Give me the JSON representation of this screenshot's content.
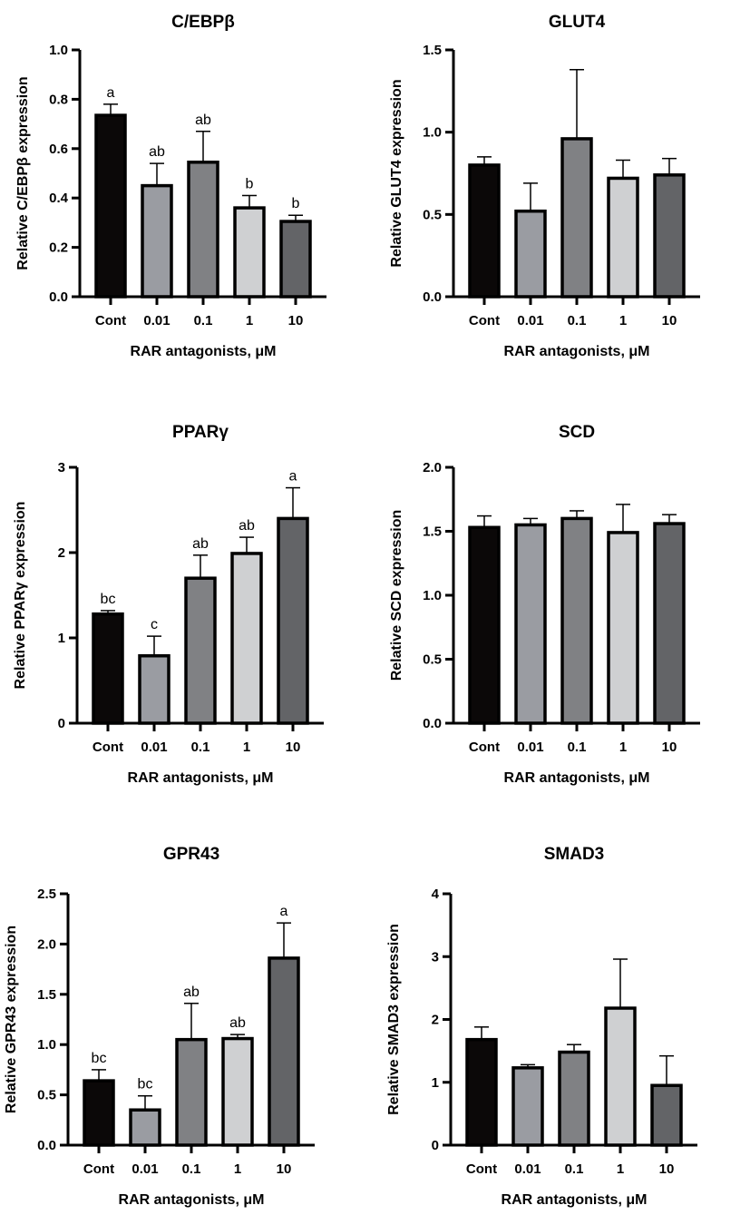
{
  "chart_data": [
    {
      "type": "bar",
      "title": "C/EBPβ",
      "ylabel": "Relative C/EBPβ expression",
      "xlabel": "RAR antagonists, μM",
      "categories": [
        "Cont",
        "0.01",
        "0.1",
        "1",
        "10"
      ],
      "values": [
        0.735,
        0.45,
        0.545,
        0.36,
        0.305
      ],
      "errors": [
        0.045,
        0.09,
        0.125,
        0.05,
        0.025
      ],
      "letters": [
        "a",
        "ab",
        "ab",
        "b",
        "b"
      ],
      "ylim": [
        0,
        1.0
      ],
      "yticks": [
        "0.0",
        "0.2",
        "0.4",
        "0.6",
        "0.8",
        "1.0"
      ]
    },
    {
      "type": "bar",
      "title": "GLUT4",
      "ylabel": "Relative GLUT4 expression",
      "xlabel": "RAR antagonists, μM",
      "categories": [
        "Cont",
        "0.01",
        "0.1",
        "1",
        "10"
      ],
      "values": [
        0.8,
        0.52,
        0.96,
        0.72,
        0.74
      ],
      "errors": [
        0.05,
        0.17,
        0.42,
        0.11,
        0.1
      ],
      "letters": [
        "",
        "",
        "",
        "",
        ""
      ],
      "ylim": [
        0,
        1.5
      ],
      "yticks": [
        "0.0",
        "0.5",
        "1.0",
        "1.5"
      ]
    },
    {
      "type": "bar",
      "title": "PPARγ",
      "ylabel": "Relative PPARγ expression",
      "xlabel": "RAR antagonists, μM",
      "categories": [
        "Cont",
        "0.01",
        "0.1",
        "1",
        "10"
      ],
      "values": [
        1.28,
        0.79,
        1.7,
        1.99,
        2.4
      ],
      "errors": [
        0.04,
        0.23,
        0.27,
        0.19,
        0.36
      ],
      "letters": [
        "bc",
        "c",
        "ab",
        "ab",
        "a"
      ],
      "ylim": [
        0,
        3
      ],
      "yticks": [
        "0",
        "1",
        "2",
        "3"
      ]
    },
    {
      "type": "bar",
      "title": "SCD",
      "ylabel": "Relative SCD expression",
      "xlabel": "RAR antagonists, μM",
      "categories": [
        "Cont",
        "0.01",
        "0.1",
        "1",
        "10"
      ],
      "values": [
        1.53,
        1.55,
        1.6,
        1.49,
        1.56
      ],
      "errors": [
        0.09,
        0.05,
        0.06,
        0.22,
        0.07
      ],
      "letters": [
        "",
        "",
        "",
        "",
        ""
      ],
      "ylim": [
        0,
        2.0
      ],
      "yticks": [
        "0.0",
        "0.5",
        "1.0",
        "1.5",
        "2.0"
      ]
    },
    {
      "type": "bar",
      "title": "GPR43",
      "ylabel": "Relative GPR43 expression",
      "xlabel": "RAR antagonists, μM",
      "categories": [
        "Cont",
        "0.01",
        "0.1",
        "1",
        "10"
      ],
      "values": [
        0.64,
        0.35,
        1.05,
        1.06,
        1.86
      ],
      "errors": [
        0.11,
        0.14,
        0.36,
        0.04,
        0.35
      ],
      "letters": [
        "bc",
        "bc",
        "ab",
        "ab",
        "a"
      ],
      "ylim": [
        0,
        2.5
      ],
      "yticks": [
        "0.0",
        "0.5",
        "1.0",
        "1.5",
        "2.0",
        "2.5"
      ]
    },
    {
      "type": "bar",
      "title": "SMAD3",
      "ylabel": "Relative SMAD3 expression",
      "xlabel": "RAR antagonists, μM",
      "categories": [
        "Cont",
        "0.01",
        "0.1",
        "1",
        "10"
      ],
      "values": [
        1.68,
        1.23,
        1.48,
        2.18,
        0.95
      ],
      "errors": [
        0.2,
        0.05,
        0.12,
        0.78,
        0.47
      ],
      "letters": [
        "",
        "",
        "",
        "",
        ""
      ],
      "ylim": [
        0,
        4
      ],
      "yticks": [
        "0",
        "1",
        "2",
        "3",
        "4"
      ]
    }
  ],
  "bar_colors": [
    "#0b0808",
    "#9a9ca2",
    "#808184",
    "#cfd0d2",
    "#636467"
  ]
}
